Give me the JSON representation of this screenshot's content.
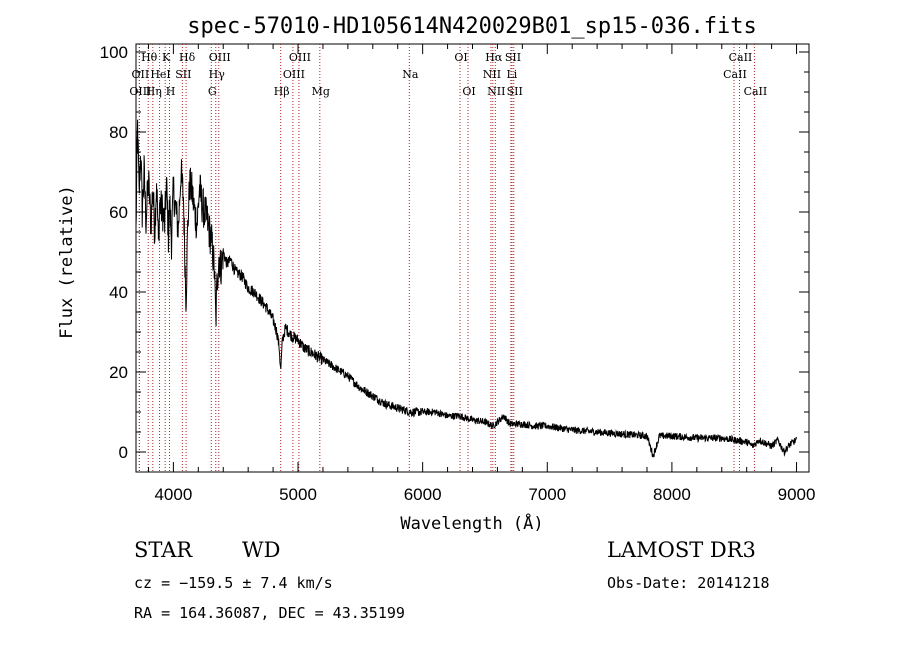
{
  "chart_data": {
    "type": "line",
    "title": "spec-57010-HD105614N420029B01_sp15-036.fits",
    "xlabel": "Wavelength (Å)",
    "ylabel": "Flux (relative)",
    "xlim": [
      3700,
      9100
    ],
    "ylim": [
      -5,
      102
    ],
    "xticks": [
      4000,
      5000,
      6000,
      7000,
      8000,
      9000
    ],
    "yticks": [
      0,
      20,
      40,
      60,
      80,
      100
    ],
    "series": [
      {
        "name": "spectrum",
        "x": [
          3700,
          3712,
          3725,
          3738,
          3750,
          3765,
          3780,
          3800,
          3820,
          3835,
          3850,
          3865,
          3880,
          3890,
          3900,
          3915,
          3930,
          3945,
          3960,
          3970,
          3985,
          4000,
          4020,
          4040,
          4060,
          4080,
          4101,
          4115,
          4130,
          4150,
          4170,
          4190,
          4210,
          4230,
          4250,
          4270,
          4290,
          4310,
          4330,
          4340,
          4350,
          4365,
          4380,
          4400,
          4430,
          4460,
          4500,
          4550,
          4600,
          4650,
          4700,
          4750,
          4800,
          4830,
          4850,
          4861,
          4875,
          4900,
          4950,
          5000,
          5050,
          5100,
          5150,
          5200,
          5300,
          5400,
          5500,
          5600,
          5700,
          5800,
          5900,
          6000,
          6100,
          6200,
          6300,
          6400,
          6500,
          6563,
          6600,
          6650,
          6700,
          6800,
          6900,
          7000,
          7200,
          7400,
          7600,
          7800,
          7850,
          7900,
          8000,
          8200,
          8400,
          8500,
          8600,
          8650,
          8700,
          8800,
          8850,
          8900,
          8950,
          9000
        ],
        "y": [
          55,
          82,
          64,
          76,
          60,
          70,
          58,
          68,
          57,
          66,
          55,
          68,
          52,
          63,
          61,
          60,
          57,
          67,
          54,
          62,
          53,
          66,
          60,
          56,
          70,
          64,
          38,
          56,
          67,
          65,
          60,
          57,
          66,
          62,
          60,
          58,
          55,
          52,
          45,
          32,
          42,
          49,
          46,
          50,
          47,
          48,
          45,
          44,
          41,
          40,
          38,
          36,
          33,
          30,
          26,
          20,
          28,
          31,
          29,
          28,
          26,
          25,
          24,
          23,
          21,
          19,
          16,
          14,
          12,
          11,
          10,
          10,
          10,
          9,
          9,
          8,
          7.5,
          6.5,
          7.5,
          9,
          7,
          7,
          6.5,
          6.5,
          5.5,
          5,
          4.5,
          4,
          -1,
          4,
          4,
          3.5,
          3.5,
          3,
          2.5,
          1.5,
          3,
          1.5,
          3,
          0,
          2,
          3
        ]
      }
    ],
    "lines": [
      {
        "name": "Hθ",
        "wave": 3798,
        "row": 0
      },
      {
        "name": "K",
        "wave": 3934,
        "row": 0
      },
      {
        "name": "Hδ",
        "wave": 4102,
        "row": 0
      },
      {
        "name": "OIII",
        "wave": 4364,
        "row": 0
      },
      {
        "name": "OIII",
        "wave": 5007,
        "row": 0
      },
      {
        "name": "OI",
        "wave": 6300,
        "row": 0
      },
      {
        "name": "Hα",
        "wave": 6563,
        "row": 0
      },
      {
        "name": "SII",
        "wave": 6717,
        "row": 0
      },
      {
        "name": "CaII",
        "wave": 8542,
        "row": 0
      },
      {
        "name": "OII",
        "wave": 3727,
        "row": 1
      },
      {
        "name": "HeI",
        "wave": 3889,
        "row": 1
      },
      {
        "name": "SII",
        "wave": 4072,
        "row": 1
      },
      {
        "name": "Hγ",
        "wave": 4340,
        "row": 1
      },
      {
        "name": "OIII",
        "wave": 4959,
        "row": 1
      },
      {
        "name": "Na",
        "wave": 5893,
        "row": 1
      },
      {
        "name": "NII",
        "wave": 6548,
        "row": 1
      },
      {
        "name": "Li",
        "wave": 6708,
        "row": 1
      },
      {
        "name": "CaII",
        "wave": 8498,
        "row": 1
      },
      {
        "name": "OIII",
        "wave": 3727,
        "row": 2
      },
      {
        "name": "Hη",
        "wave": 3835,
        "row": 2
      },
      {
        "name": "H",
        "wave": 3969,
        "row": 2
      },
      {
        "name": "G",
        "wave": 4304,
        "row": 2
      },
      {
        "name": "Hβ",
        "wave": 4861,
        "row": 2
      },
      {
        "name": "Mg",
        "wave": 5175,
        "row": 2
      },
      {
        "name": "OI",
        "wave": 6364,
        "row": 2
      },
      {
        "name": "NII",
        "wave": 6583,
        "row": 2
      },
      {
        "name": "SII",
        "wave": 6731,
        "row": 2
      },
      {
        "name": "CaII",
        "wave": 8662,
        "row": 2
      }
    ]
  },
  "info": {
    "object_class": "STAR",
    "subclass": "WD",
    "survey": "LAMOST DR3",
    "cz": "cz = −159.5 ± 7.4 km/s",
    "obs_date": "Obs-Date: 20141218",
    "coords": "RA = 164.36087, DEC =  43.35199"
  }
}
